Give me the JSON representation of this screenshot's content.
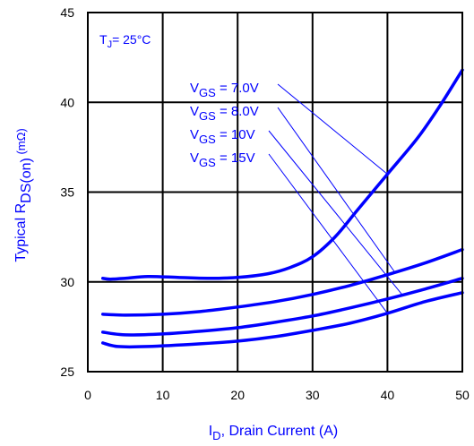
{
  "chart_data": {
    "type": "line",
    "title": "",
    "xlabel": {
      "main": "I",
      "sub": "D",
      "rest": ", Drain Current (A)"
    },
    "ylabel": {
      "main": "Typical R",
      "sub": "DS(on)",
      "rest": " (mΩ)"
    },
    "xlim": [
      0,
      50
    ],
    "ylim": [
      25,
      45
    ],
    "xticks": [
      0,
      10,
      20,
      30,
      40,
      50
    ],
    "yticks": [
      25,
      30,
      35,
      40,
      45
    ],
    "grid": true,
    "condition": {
      "main": "T",
      "sub": "J",
      "rest": "= 25°C"
    },
    "colors": {
      "series": "#0000ff",
      "frame": "#000000",
      "grid": "#000000"
    },
    "series": [
      {
        "name": "V_GS = 7.0V",
        "label": {
          "main": "V",
          "sub": "GS",
          "rest": " = 7.0V"
        },
        "points": [
          [
            2,
            30.2
          ],
          [
            3,
            30.15
          ],
          [
            5,
            30.2
          ],
          [
            8,
            30.3
          ],
          [
            12,
            30.25
          ],
          [
            16,
            30.2
          ],
          [
            20,
            30.25
          ],
          [
            24,
            30.45
          ],
          [
            27,
            30.8
          ],
          [
            30,
            31.4
          ],
          [
            33,
            32.5
          ],
          [
            36,
            34.0
          ],
          [
            40,
            36.0
          ],
          [
            44,
            38.0
          ],
          [
            47,
            39.8
          ],
          [
            50,
            41.8
          ]
        ],
        "arrow_to_x": 40
      },
      {
        "name": "V_GS = 8.0V",
        "label": {
          "main": "V",
          "sub": "GS",
          "rest": " = 8.0V"
        },
        "points": [
          [
            2,
            28.2
          ],
          [
            5,
            28.15
          ],
          [
            10,
            28.2
          ],
          [
            15,
            28.35
          ],
          [
            20,
            28.6
          ],
          [
            25,
            28.9
          ],
          [
            30,
            29.3
          ],
          [
            35,
            29.8
          ],
          [
            40,
            30.4
          ],
          [
            45,
            31.05
          ],
          [
            50,
            31.8
          ]
        ],
        "arrow_to_x": 41
      },
      {
        "name": "V_GS = 10V",
        "label": {
          "main": "V",
          "sub": "GS",
          "rest": " = 10V"
        },
        "points": [
          [
            2,
            27.2
          ],
          [
            5,
            27.05
          ],
          [
            10,
            27.1
          ],
          [
            15,
            27.25
          ],
          [
            20,
            27.45
          ],
          [
            25,
            27.75
          ],
          [
            30,
            28.1
          ],
          [
            35,
            28.55
          ],
          [
            40,
            29.05
          ],
          [
            45,
            29.6
          ],
          [
            50,
            30.2
          ]
        ],
        "arrow_to_x": 42
      },
      {
        "name": "V_GS = 15V",
        "label": {
          "main": "V",
          "sub": "GS",
          "rest": " = 15V"
        },
        "points": [
          [
            2,
            26.6
          ],
          [
            4,
            26.4
          ],
          [
            8,
            26.4
          ],
          [
            15,
            26.55
          ],
          [
            20,
            26.7
          ],
          [
            25,
            26.95
          ],
          [
            30,
            27.3
          ],
          [
            35,
            27.7
          ],
          [
            40,
            28.25
          ],
          [
            45,
            28.9
          ],
          [
            50,
            29.4
          ]
        ],
        "arrow_to_x": 40
      }
    ]
  }
}
